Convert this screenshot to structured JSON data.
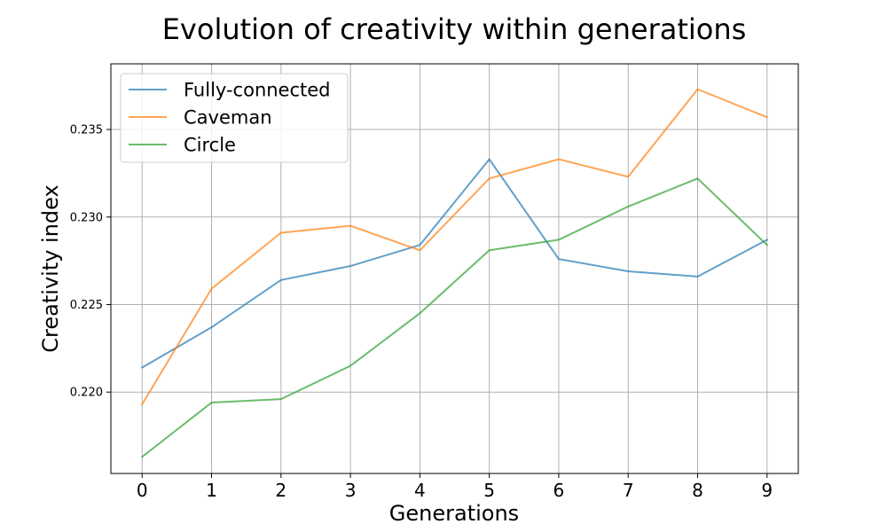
{
  "chart_data": {
    "type": "line",
    "title": "Evolution of creativity within generations",
    "xlabel": "Generations",
    "ylabel": "Creativity index",
    "x": [
      0,
      1,
      2,
      3,
      4,
      5,
      6,
      7,
      8,
      9
    ],
    "x_ticks": [
      "0",
      "1",
      "2",
      "3",
      "4",
      "5",
      "6",
      "7",
      "8",
      "9"
    ],
    "y_ticks": [
      "0.220",
      "0.225",
      "0.230",
      "0.235"
    ],
    "xlim": [
      -0.45,
      9.45
    ],
    "ylim": [
      0.21535,
      0.23875
    ],
    "grid": true,
    "legend_position": "upper left",
    "series": [
      {
        "name": "Fully-connected",
        "color": "#1f77b4",
        "values": [
          0.2214,
          0.2237,
          0.2264,
          0.2272,
          0.2284,
          0.2333,
          0.2276,
          0.2269,
          0.2266,
          0.2287
        ]
      },
      {
        "name": "Caveman",
        "color": "#ff7f0e",
        "values": [
          0.2193,
          0.2259,
          0.2291,
          0.2295,
          0.2281,
          0.2322,
          0.2333,
          0.2323,
          0.2373,
          0.2357
        ]
      },
      {
        "name": "Circle",
        "color": "#2ca02c",
        "values": [
          0.2163,
          0.2194,
          0.2196,
          0.2215,
          0.2245,
          0.2281,
          0.2287,
          0.2306,
          0.2322,
          0.2284
        ]
      }
    ]
  }
}
